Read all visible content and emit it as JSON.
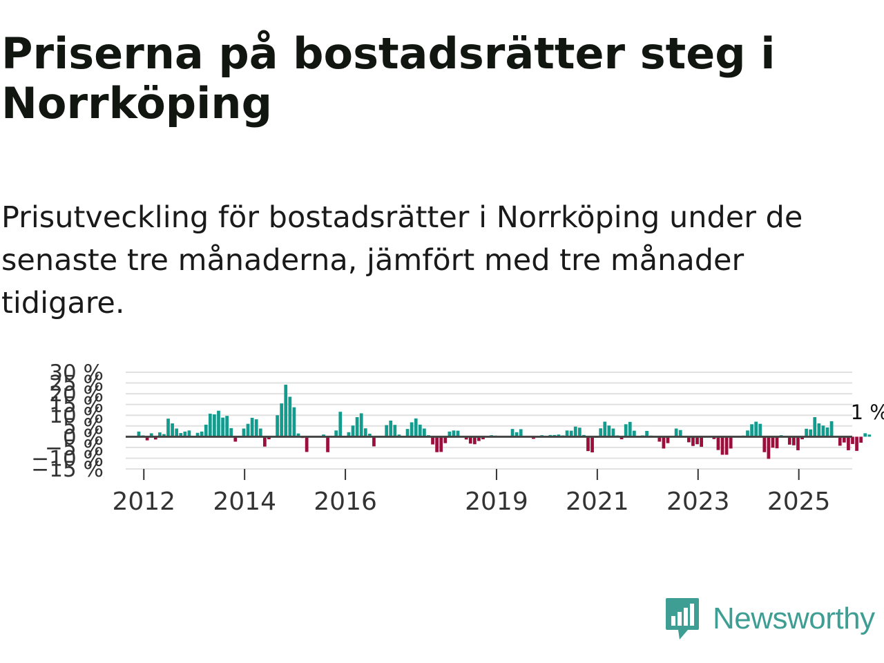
{
  "title": "Priserna på bostadsrätter steg i Norrköping",
  "subtitle": "Prisutveckling för bostadsrätter i Norrköping under de senaste tre månaderna, jämfört med tre månader tidigare.",
  "brand": {
    "name": "Newsworthy"
  },
  "colors": {
    "positive": "#139b8e",
    "negative": "#9c0f3c",
    "grid": "#e0e0e0",
    "zero_line": "#444444",
    "brand": "#3f9e93"
  },
  "chart_data": {
    "type": "bar",
    "title": "Priserna på bostadsrätter steg i Norrköping",
    "xlabel": "",
    "ylabel": "",
    "x_start": "2011-05",
    "x_end": "2026-04",
    "ylim": [
      -15,
      30
    ],
    "yticks": [
      -15,
      -10,
      -5,
      0,
      5,
      10,
      15,
      20,
      25,
      30
    ],
    "ytick_labels": [
      "−15 %",
      "−10 %",
      "−5 %",
      "0 %",
      "5 %",
      "10 %",
      "15 %",
      "20 %",
      "25 %",
      "30 %"
    ],
    "xticks": [
      {
        "label": "2012",
        "t": 2012.0
      },
      {
        "label": "2014",
        "t": 2014.0
      },
      {
        "label": "2016",
        "t": 2016.0
      },
      {
        "label": "2019",
        "t": 2019.0
      },
      {
        "label": "2021",
        "t": 2021.0
      },
      {
        "label": "2023",
        "t": 2023.0
      },
      {
        "label": "2025",
        "t": 2025.0
      }
    ],
    "start": 2011.9,
    "values": [
      2.4,
      0.6,
      -1.7,
      1.6,
      -1.3,
      2.0,
      1.2,
      8.4,
      6.2,
      3.8,
      1.7,
      2.4,
      2.9,
      0.0,
      1.8,
      2.4,
      5.6,
      10.7,
      10.4,
      12.1,
      8.9,
      9.7,
      4.0,
      -2.3,
      0.0,
      3.8,
      6.0,
      8.8,
      8.1,
      3.8,
      -4.6,
      -1.2,
      0.0,
      10.0,
      15.5,
      24.2,
      18.6,
      13.7,
      1.5,
      -0.6,
      -7.1,
      0.0,
      0.0,
      0.0,
      1.0,
      -7.2,
      0.0,
      2.9,
      11.6,
      0.0,
      2.1,
      5.2,
      9.1,
      10.9,
      3.9,
      1.4,
      -4.5,
      0.0,
      0.0,
      5.4,
      7.5,
      5.5,
      1.0,
      0.0,
      3.6,
      6.7,
      8.5,
      5.6,
      3.8,
      0.7,
      -3.6,
      -7.2,
      -7.1,
      -3.0,
      2.4,
      2.9,
      2.8,
      0.0,
      -1.3,
      -3.2,
      -3.5,
      -2.0,
      -1.2,
      0.0,
      0.7,
      0.5,
      0.4,
      0.3,
      0.2,
      3.6,
      2.1,
      3.5,
      0.0,
      0.0,
      -1.0,
      0.0,
      0.7,
      0.2,
      0.8,
      0.8,
      1.0,
      0.6,
      2.9,
      2.8,
      4.7,
      4.2,
      0.8,
      -6.7,
      -7.3,
      -0.5,
      3.9,
      7.0,
      5.2,
      3.8,
      0.6,
      -1.2,
      5.8,
      6.9,
      2.8,
      0.0,
      0.6,
      2.7,
      0.5,
      0.0,
      -2.3,
      -5.5,
      -3.0,
      0.0,
      3.8,
      3.1,
      0.0,
      -2.6,
      -4.3,
      -3.5,
      -4.7,
      0.0,
      0.0,
      -1.1,
      -6.2,
      -8.4,
      -8.4,
      -5.5,
      0.0,
      0.0,
      0.5,
      2.9,
      5.8,
      7.0,
      6.0,
      -7.2,
      -10.3,
      -5.1,
      -5.4,
      0.7,
      0.0,
      -3.7,
      -4.0,
      -6.3,
      -1.2,
      3.7,
      3.4,
      9.1,
      6.2,
      5.2,
      4.3,
      7.2,
      0.0,
      -4.2,
      -2.7,
      -6.3,
      -3.4,
      -6.6,
      -2.8,
      1.6,
      1.0
    ],
    "annotations": [
      {
        "text": "1 %",
        "position": "last-bar"
      }
    ]
  }
}
